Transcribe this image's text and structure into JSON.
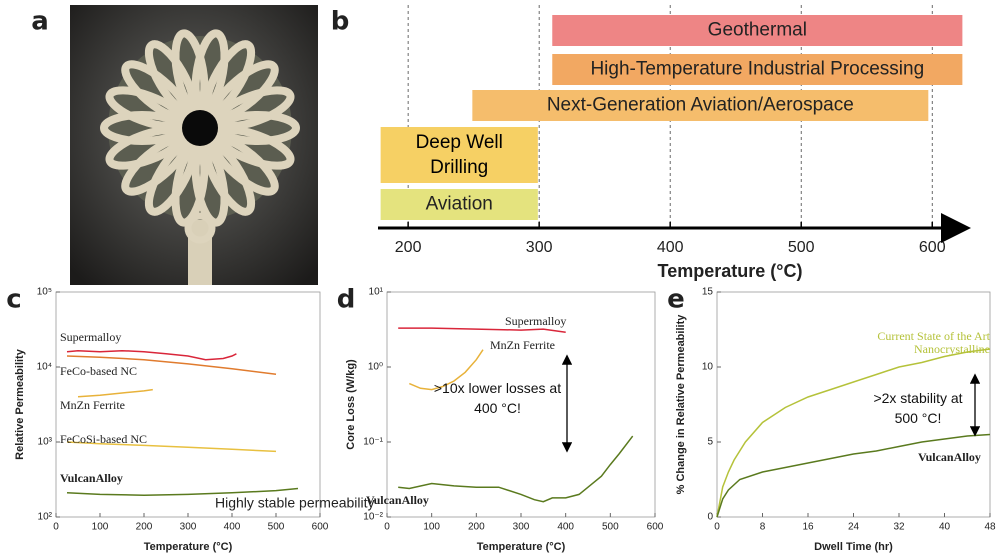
{
  "chart_data": [
    {
      "type": "image",
      "panel": "a"
    },
    {
      "type": "range-bar",
      "panel": "b",
      "xlabel": "Temperature (°C)",
      "xlim": [
        177,
        625
      ],
      "xticks": [
        200,
        300,
        400,
        500,
        600
      ],
      "grid": true,
      "bars": [
        {
          "label": "Geothermal",
          "start": 310,
          "end": 623,
          "color": "#ee8585"
        },
        {
          "label": "High-Temperature Industrial Processing",
          "start": 310,
          "end": 623,
          "color": "#f2a862"
        },
        {
          "label": "Next-Generation Aviation/Aerospace",
          "start": 249,
          "end": 597,
          "color": "#f5bd6c"
        },
        {
          "label": "Deep Well Drilling",
          "start": 179,
          "end": 299,
          "color": "#f6d064"
        },
        {
          "label": "Aviation",
          "start": 179,
          "end": 299,
          "color": "#e4e37e"
        }
      ]
    },
    {
      "type": "line",
      "panel": "c",
      "xlabel": "Temperature (°C)",
      "ylabel": "Relative Permeability",
      "xlim": [
        0,
        600
      ],
      "xticks": [
        0,
        100,
        200,
        300,
        400,
        500,
        600
      ],
      "ylim": [
        100,
        100000
      ],
      "ylog": true,
      "yticks": [
        {
          "value": 100,
          "label": "10²"
        },
        {
          "value": 1000,
          "label": "10³"
        },
        {
          "value": 10000,
          "label": "10⁴"
        },
        {
          "value": 100000,
          "label": "10⁵"
        }
      ],
      "annotations": [
        "Highly stable permeability"
      ],
      "series": [
        {
          "name": "Supermalloy",
          "color": "#d9263a",
          "x": [
            25,
            50,
            100,
            150,
            200,
            250,
            300,
            340,
            380,
            400,
            410
          ],
          "values": [
            16000,
            16500,
            16000,
            16500,
            16000,
            15000,
            14000,
            12500,
            13000,
            14000,
            15000
          ]
        },
        {
          "name": "FeCo-based NC",
          "color": "#e07b2e",
          "x": [
            25,
            100,
            200,
            300,
            400,
            500
          ],
          "values": [
            14000,
            13500,
            12500,
            11000,
            9500,
            8000
          ]
        },
        {
          "name": "MnZn Ferrite",
          "color": "#e8b23a",
          "x": [
            50,
            100,
            150,
            200,
            220
          ],
          "values": [
            4000,
            4200,
            4500,
            4800,
            5000
          ]
        },
        {
          "name": "FeCoSi-based NC",
          "color": "#e8c040",
          "x": [
            25,
            100,
            200,
            300,
            400,
            500
          ],
          "values": [
            1000,
            950,
            900,
            850,
            800,
            750
          ]
        },
        {
          "name": "VulcanAlloy",
          "color": "#5a7a1e",
          "x": [
            25,
            100,
            200,
            300,
            400,
            500,
            550
          ],
          "values": [
            210,
            200,
            195,
            200,
            210,
            225,
            240
          ]
        }
      ]
    },
    {
      "type": "line",
      "panel": "d",
      "xlabel": "Temperature (°C)",
      "ylabel": "Core Loss (W/kg)",
      "xlim": [
        0,
        600
      ],
      "xticks": [
        0,
        100,
        200,
        300,
        400,
        500,
        600
      ],
      "ylim": [
        0.01,
        10
      ],
      "ylog": true,
      "yticks": [
        {
          "value": 0.01,
          "label": "10⁻²"
        },
        {
          "value": 0.1,
          "label": "10⁻¹"
        },
        {
          "value": 1,
          "label": "10⁰"
        },
        {
          "value": 10,
          "label": "10¹"
        }
      ],
      "annotations": [
        ">10x lower losses at 400 °C!"
      ],
      "series": [
        {
          "name": "Supermalloy",
          "color": "#d9263a",
          "x": [
            25,
            100,
            200,
            300,
            350,
            400
          ],
          "values": [
            3.3,
            3.3,
            3.2,
            3.1,
            3.2,
            2.9
          ]
        },
        {
          "name": "MnZn Ferrite",
          "color": "#e8b23a",
          "x": [
            50,
            75,
            100,
            125,
            150,
            175,
            200,
            215
          ],
          "values": [
            0.6,
            0.52,
            0.5,
            0.55,
            0.65,
            0.85,
            1.25,
            1.7
          ]
        },
        {
          "name": "VulcanAlloy",
          "color": "#5a7a1e",
          "x": [
            25,
            50,
            100,
            150,
            200,
            250,
            300,
            330,
            350,
            370,
            400,
            430,
            450,
            480,
            500,
            520,
            550
          ],
          "values": [
            0.025,
            0.024,
            0.028,
            0.026,
            0.025,
            0.025,
            0.02,
            0.017,
            0.016,
            0.018,
            0.018,
            0.02,
            0.025,
            0.035,
            0.05,
            0.07,
            0.12
          ]
        }
      ]
    },
    {
      "type": "line",
      "panel": "e",
      "xlabel": "Dwell Time (hr)",
      "ylabel": "% Change in Relative Permeability",
      "xlim": [
        0,
        48
      ],
      "xticks": [
        0,
        8,
        16,
        24,
        32,
        40,
        48
      ],
      "ylim": [
        0,
        15
      ],
      "yticks": [
        0,
        5,
        10,
        15
      ],
      "annotations": [
        ">2x stability at 500 °C!"
      ],
      "series": [
        {
          "name": "Current State of the Art Nanocrystalline",
          "color": "#b5c23a",
          "x": [
            0,
            1,
            2,
            3,
            5,
            8,
            12,
            16,
            20,
            24,
            28,
            32,
            36,
            40,
            44,
            48
          ],
          "values": [
            0,
            2,
            3,
            3.8,
            5,
            6.3,
            7.3,
            8,
            8.5,
            9,
            9.5,
            10,
            10.3,
            10.7,
            11,
            11.2
          ]
        },
        {
          "name": "VulcanAlloy",
          "color": "#5a7a1e",
          "x": [
            0,
            1,
            2,
            4,
            8,
            12,
            16,
            20,
            24,
            28,
            32,
            36,
            40,
            44,
            48
          ],
          "values": [
            0,
            1.2,
            1.8,
            2.5,
            3,
            3.3,
            3.6,
            3.9,
            4.2,
            4.4,
            4.7,
            5,
            5.2,
            5.4,
            5.5
          ]
        }
      ]
    }
  ]
}
